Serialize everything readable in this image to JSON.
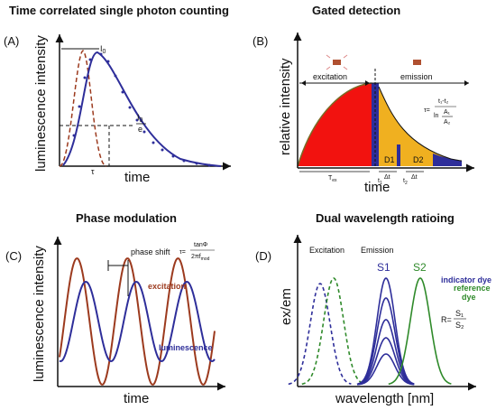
{
  "panels": {
    "a": {
      "label": "(A)",
      "title": "Time correlated single photon counting",
      "ylabel": "luminescence intensity",
      "xlabel": "time",
      "i0": "I",
      "i0_sub": "0",
      "ie_num": "I",
      "ie_num_sub": "0",
      "ie_den": "e",
      "tau": "τ"
    },
    "b": {
      "label": "(B)",
      "title": "Gated detection",
      "ylabel": "relative intensity",
      "xlabel": "time",
      "excitation": "excitation",
      "emission": "emission",
      "tex": "T",
      "tex_sub": "ex",
      "d1": "D1",
      "d2": "D2",
      "dt": "Δt",
      "t1": "t",
      "t1_sub": "1",
      "t2": "t",
      "t2_sub": "2",
      "tau_lhs": "τ=",
      "tau_num": "t₁-t₂",
      "tau_ln": "ln",
      "tau_a1": "A₁",
      "tau_a2": "A₂"
    },
    "c": {
      "label": "(C)",
      "title": "Phase modulation",
      "ylabel": "luminescence intensity",
      "xlabel": "time",
      "phase_shift": "phase shift",
      "excitation": "excitation",
      "luminescence": "luminescence",
      "tau_lhs": "τ=",
      "tau_num": "tanΦ",
      "tau_den": "2πf",
      "tau_den_sub": "mod"
    },
    "d": {
      "label": "(D)",
      "title": "Dual wavelength ratioing",
      "ylabel": "ex/em",
      "xlabel": "wavelength [nm]",
      "excitation": "Excitation",
      "emission": "Emission",
      "s1": "S1",
      "s2": "S2",
      "indicator_dye": "indicator dye",
      "reference_dye": "reference",
      "dye": "dye",
      "ratio_lhs": "R=",
      "ratio_num": "S₁",
      "ratio_den": "S₂"
    }
  },
  "colors": {
    "blue": "#2e2e9a",
    "brown": "#9c3a1e",
    "green": "#2f8a2a",
    "red": "#f2120f",
    "orange": "#f0b020",
    "olive": "#7a6b25",
    "cyan": "#32b8d8"
  }
}
